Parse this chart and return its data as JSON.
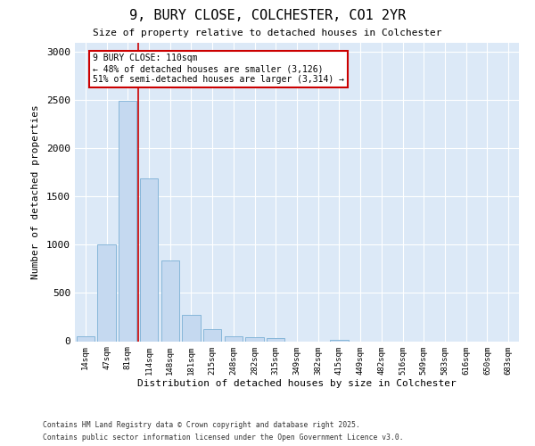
{
  "title": "9, BURY CLOSE, COLCHESTER, CO1 2YR",
  "subtitle": "Size of property relative to detached houses in Colchester",
  "xlabel": "Distribution of detached houses by size in Colchester",
  "ylabel": "Number of detached properties",
  "footnote1": "Contains HM Land Registry data © Crown copyright and database right 2025.",
  "footnote2": "Contains public sector information licensed under the Open Government Licence v3.0.",
  "bar_color": "#c5d9f0",
  "bar_edge_color": "#7bafd4",
  "fig_background": "#ffffff",
  "plot_background": "#dce9f7",
  "grid_color": "#ffffff",
  "annotation_box_color": "#cc0000",
  "vline_color": "#cc0000",
  "categories": [
    "14sqm",
    "47sqm",
    "81sqm",
    "114sqm",
    "148sqm",
    "181sqm",
    "215sqm",
    "248sqm",
    "282sqm",
    "315sqm",
    "349sqm",
    "382sqm",
    "415sqm",
    "449sqm",
    "482sqm",
    "516sqm",
    "549sqm",
    "583sqm",
    "616sqm",
    "650sqm",
    "683sqm"
  ],
  "values": [
    50,
    1000,
    2490,
    1690,
    835,
    270,
    125,
    55,
    45,
    30,
    0,
    0,
    15,
    0,
    0,
    0,
    0,
    0,
    0,
    0,
    0
  ],
  "ylim": [
    0,
    3100
  ],
  "yticks": [
    0,
    500,
    1000,
    1500,
    2000,
    2500,
    3000
  ],
  "vline_x": 3,
  "annotation_text": "9 BURY CLOSE: 110sqm\n← 48% of detached houses are smaller (3,126)\n51% of semi-detached houses are larger (3,314) →"
}
